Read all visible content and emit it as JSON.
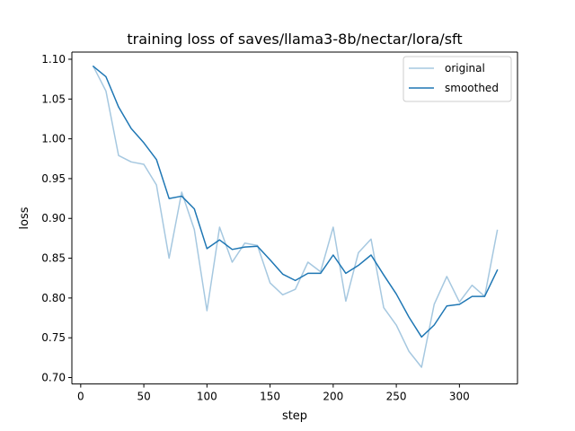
{
  "chart_data": {
    "type": "line",
    "title": "training loss of saves/llama3-8b/nectar/lora/sft",
    "xlabel": "step",
    "ylabel": "loss",
    "xlim": [
      -7,
      346
    ],
    "ylim": [
      0.692,
      1.109
    ],
    "x_ticks": [
      0,
      50,
      100,
      150,
      200,
      250,
      300
    ],
    "y_ticks": [
      0.7,
      0.75,
      0.8,
      0.85,
      0.9,
      0.95,
      1.0,
      1.05,
      1.1
    ],
    "x_tick_labels": [
      "0",
      "50",
      "100",
      "150",
      "200",
      "250",
      "300"
    ],
    "y_tick_labels": [
      "0.70",
      "0.75",
      "0.80",
      "0.85",
      "0.90",
      "0.95",
      "1.00",
      "1.05",
      "1.10"
    ],
    "grid": false,
    "legend_position": "top-right",
    "x": [
      10,
      20,
      30,
      40,
      50,
      60,
      70,
      80,
      90,
      100,
      110,
      120,
      130,
      140,
      150,
      160,
      170,
      180,
      190,
      200,
      210,
      220,
      230,
      240,
      250,
      260,
      270,
      280,
      290,
      300,
      310,
      320,
      330
    ],
    "series": [
      {
        "name": "original",
        "color": "#a6c8e0",
        "values": [
          1.091,
          1.06,
          0.979,
          0.971,
          0.968,
          0.942,
          0.85,
          0.933,
          0.886,
          0.784,
          0.889,
          0.845,
          0.869,
          0.866,
          0.819,
          0.804,
          0.811,
          0.845,
          0.833,
          0.889,
          0.796,
          0.857,
          0.874,
          0.788,
          0.766,
          0.733,
          0.713,
          0.792,
          0.827,
          0.795,
          0.816,
          0.802,
          0.885
        ]
      },
      {
        "name": "smoothed",
        "color": "#1f77b4",
        "values": [
          1.091,
          1.078,
          1.04,
          1.013,
          0.995,
          0.974,
          0.925,
          0.928,
          0.912,
          0.862,
          0.873,
          0.861,
          0.864,
          0.865,
          0.848,
          0.83,
          0.822,
          0.831,
          0.831,
          0.854,
          0.831,
          0.841,
          0.854,
          0.829,
          0.805,
          0.776,
          0.751,
          0.766,
          0.79,
          0.792,
          0.802,
          0.802,
          0.835
        ]
      }
    ]
  }
}
